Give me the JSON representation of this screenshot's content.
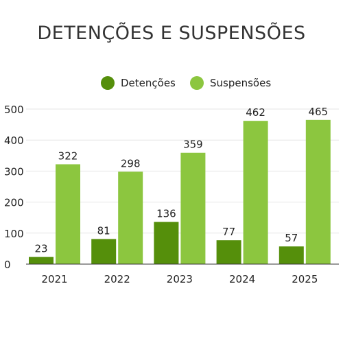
{
  "chart_data": {
    "type": "bar",
    "title": "DETENÇÕES E SUSPENSÕES",
    "xlabel": "",
    "ylabel": "",
    "categories": [
      "2021",
      "2022",
      "2023",
      "2024",
      "2025"
    ],
    "series": [
      {
        "name": "Detenções",
        "color": "#558f0b",
        "values": [
          23,
          81,
          136,
          77,
          57
        ]
      },
      {
        "name": "Suspensões",
        "color": "#8cc63f",
        "values": [
          322,
          298,
          359,
          462,
          465
        ]
      }
    ],
    "ylim": [
      0,
      500
    ],
    "yticks": [
      0,
      100,
      200,
      300,
      400,
      500
    ],
    "grid": true,
    "legend_position": "top-center",
    "data_labels": true
  }
}
